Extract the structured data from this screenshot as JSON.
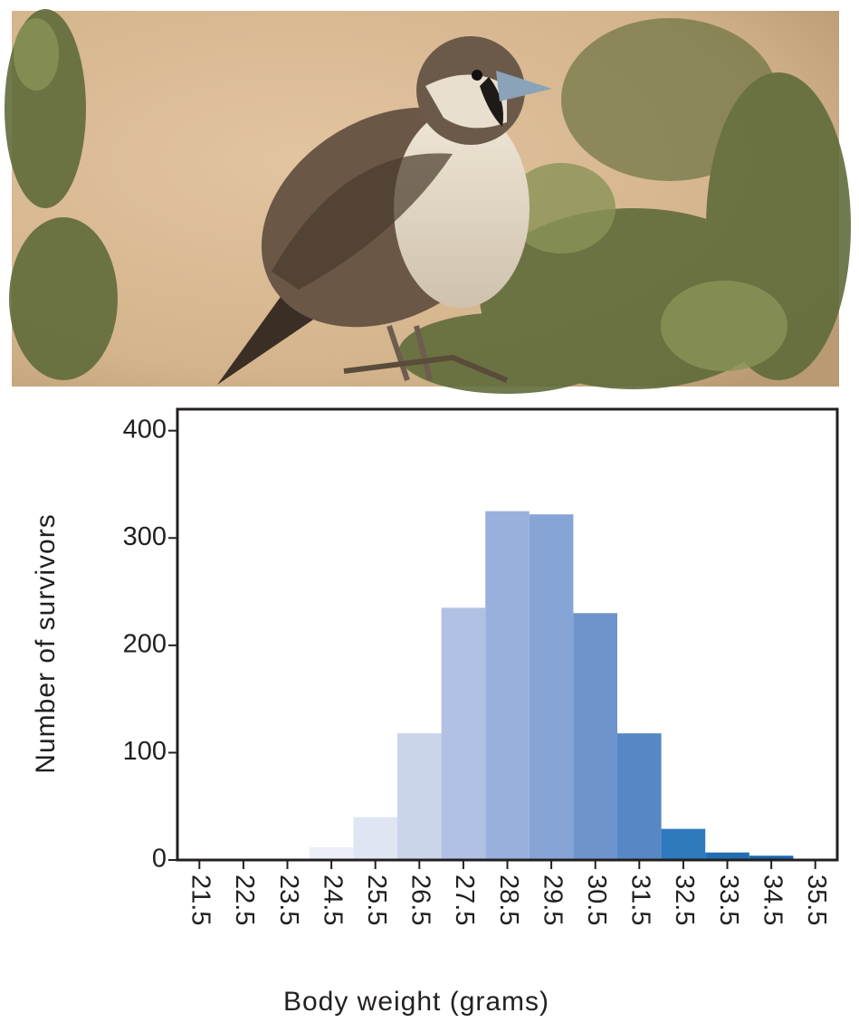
{
  "chart_data": {
    "type": "bar",
    "xlabel": "Body weight (grams)",
    "ylabel": "Number of survivors",
    "categories": [
      "21.5",
      "22.5",
      "23.5",
      "24.5",
      "25.5",
      "26.5",
      "27.5",
      "28.5",
      "29.5",
      "30.5",
      "31.5",
      "32.5",
      "33.5",
      "34.5",
      "35.5"
    ],
    "values": [
      0,
      1,
      1,
      12,
      40,
      118,
      235,
      325,
      322,
      230,
      118,
      29,
      7,
      4,
      0
    ],
    "colors": [
      "#f4f5fa",
      "#f2f3f9",
      "#f0f2f8",
      "#eceff7",
      "#e0e5f3",
      "#cad4eb",
      "#b0c1e3",
      "#9ab0dc",
      "#86a4d6",
      "#6f94cd",
      "#5787c5",
      "#2f79bd",
      "#1f6eb4",
      "#1a66ad",
      "#1a63a9"
    ],
    "ylim": [
      0,
      420
    ],
    "yticks": [
      0,
      100,
      200,
      300,
      400
    ]
  }
}
